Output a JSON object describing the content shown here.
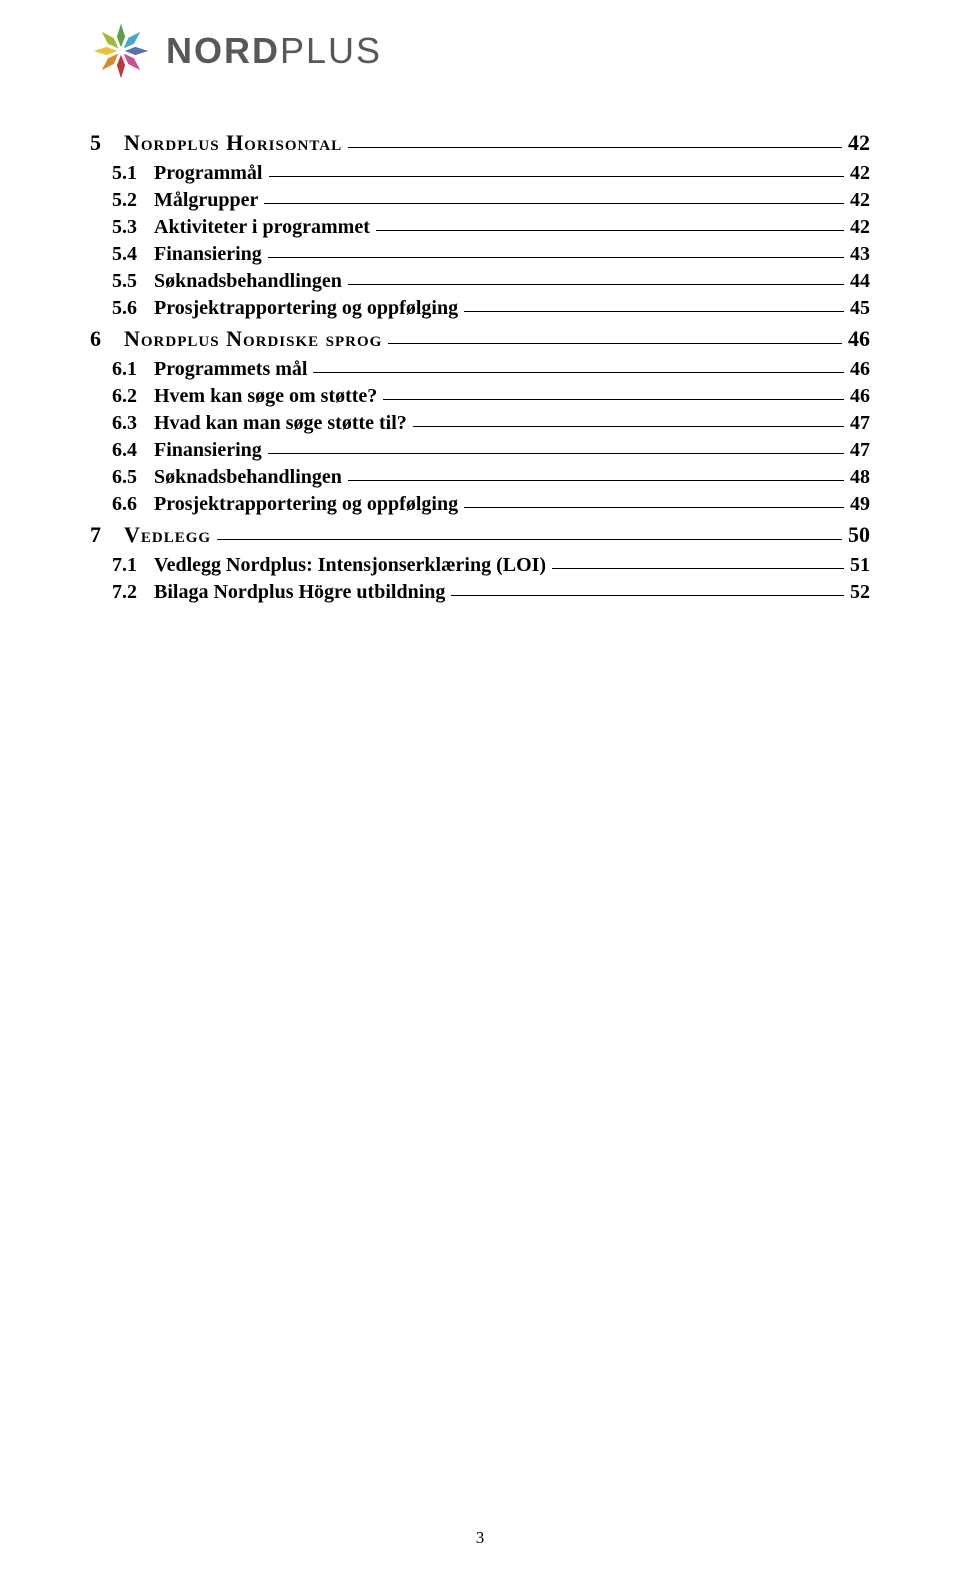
{
  "brand": {
    "part1": "NORD",
    "part2": "PLUS"
  },
  "logo_colors": {
    "n": "#5d9f47",
    "ne": "#4aa7c4",
    "e": "#5b6fae",
    "se": "#c94f97",
    "s": "#b93a3e",
    "sw": "#d88a2b",
    "w": "#e8c23a",
    "nw": "#9fb93a"
  },
  "toc": [
    {
      "level": "section",
      "num": "5",
      "label": "Nordplus Horisontal",
      "page": "42"
    },
    {
      "level": "sub",
      "num": "5.1",
      "label": "Programmål",
      "page": "42"
    },
    {
      "level": "sub",
      "num": "5.2",
      "label": "Målgrupper",
      "page": "42"
    },
    {
      "level": "sub",
      "num": "5.3",
      "label": "Aktiviteter i programmet",
      "page": "42"
    },
    {
      "level": "sub",
      "num": "5.4",
      "label": "Finansiering",
      "page": "43"
    },
    {
      "level": "sub",
      "num": "5.5",
      "label": "Søknadsbehandlingen",
      "page": "44"
    },
    {
      "level": "sub",
      "num": "5.6",
      "label": "Prosjektrapportering og oppfølging",
      "page": "45"
    },
    {
      "level": "section",
      "num": "6",
      "label": "Nordplus Nordiske sprog",
      "page": "46"
    },
    {
      "level": "sub",
      "num": "6.1",
      "label": "Programmets mål",
      "page": "46"
    },
    {
      "level": "sub",
      "num": "6.2",
      "label": "Hvem kan søge om støtte?",
      "page": "46"
    },
    {
      "level": "sub",
      "num": "6.3",
      "label": "Hvad kan man søge støtte til?",
      "page": "47"
    },
    {
      "level": "sub",
      "num": "6.4",
      "label": "Finansiering",
      "page": "47"
    },
    {
      "level": "sub",
      "num": "6.5",
      "label": "Søknadsbehandlingen",
      "page": "48"
    },
    {
      "level": "sub",
      "num": "6.6",
      "label": "Prosjektrapportering og oppfølging",
      "page": "49"
    },
    {
      "level": "section",
      "num": "7",
      "label": "Vedlegg",
      "page": "50"
    },
    {
      "level": "sub",
      "num": "7.1",
      "label": "Vedlegg Nordplus: Intensjonserklæring (LOI)",
      "page": "51"
    },
    {
      "level": "sub",
      "num": "7.2",
      "label": "Bilaga Nordplus Högre utbildning",
      "page": "52"
    }
  ],
  "footer_page": "3"
}
